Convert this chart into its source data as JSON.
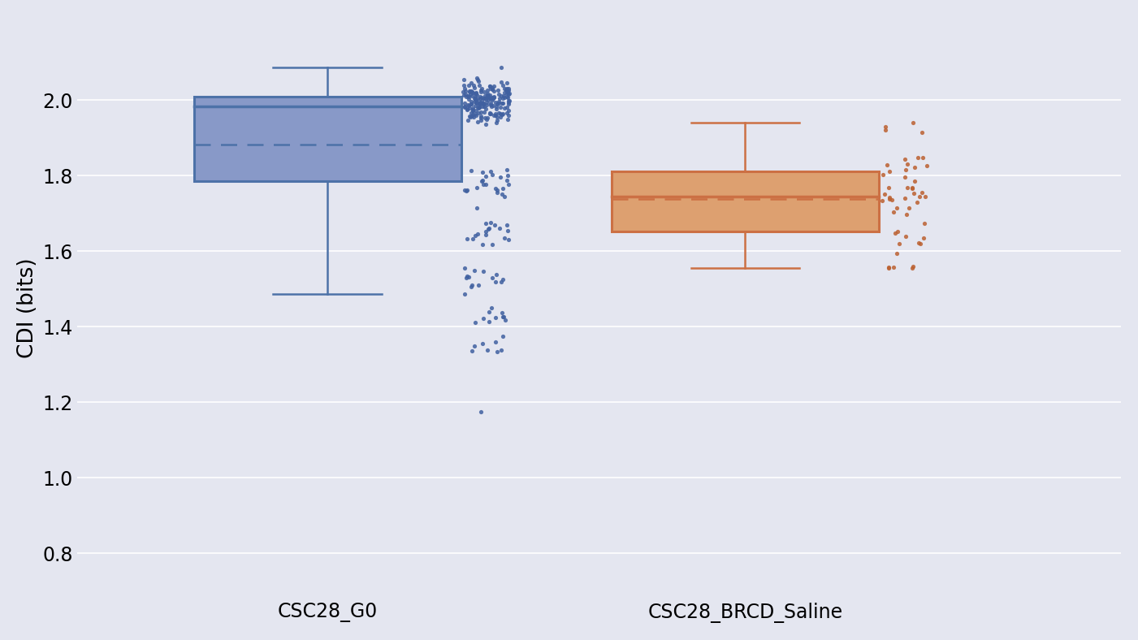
{
  "background_color": "#e4e6f0",
  "ylabel": "CDI (bits)",
  "groups": [
    "CSC28_G0",
    "CSC28_BRCD_Saline"
  ],
  "box_colors": [
    "#4d72a8",
    "#cc7044"
  ],
  "box_face_colors": [
    "#8899c8",
    "#dda070"
  ],
  "ylim": [
    0.68,
    2.22
  ],
  "yticks": [
    0.8,
    1.0,
    1.2,
    1.4,
    1.6,
    1.8,
    2.0
  ],
  "dot_color1": "#4060a0",
  "dot_color2": "#bb6030",
  "dot_alpha": 0.85,
  "dot_size": 14,
  "grid_color": "#ffffff",
  "tick_fontsize": 17,
  "label_fontsize": 19,
  "box1": {
    "whisker_low": 1.645,
    "q1": 1.94,
    "median": 2.0,
    "mean": 1.935,
    "q3": 2.03,
    "whisker_high": 2.09
  },
  "box2": {
    "whisker_low": 1.55,
    "q1": 1.57,
    "median": 1.75,
    "mean": 1.7,
    "q3": 1.82,
    "whisker_high": 1.92
  }
}
